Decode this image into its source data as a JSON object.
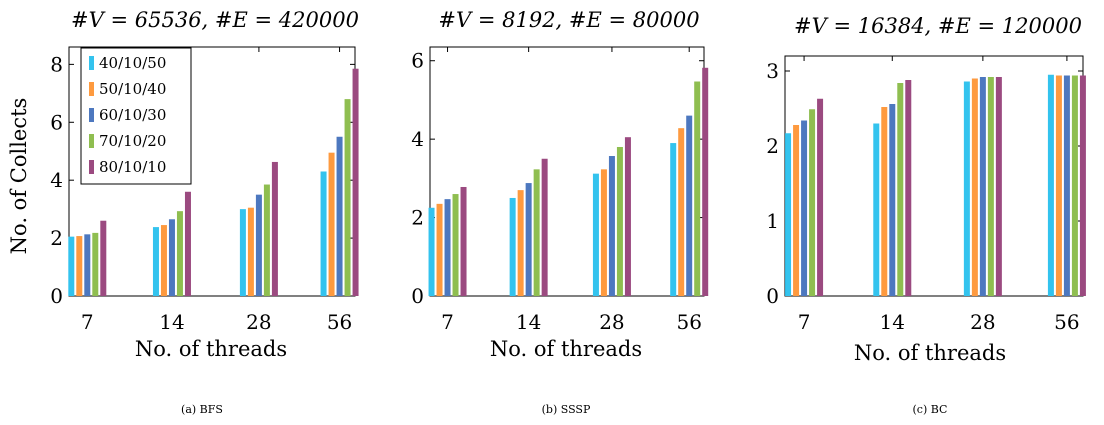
{
  "chart_data": [
    {
      "type": "bar",
      "title": "#V = 65536, #E = 420000",
      "caption": "(a) BFS",
      "xlabel": "No. of threads",
      "ylabel": "No. of Collects",
      "categories": [
        "7",
        "14",
        "28",
        "56"
      ],
      "ylim": [
        0,
        8.6
      ],
      "yticks": [
        0,
        2,
        4,
        6,
        8
      ],
      "legend": "top-left",
      "series": [
        {
          "name": "40/10/50",
          "values": [
            2.05,
            2.38,
            3.0,
            4.3
          ]
        },
        {
          "name": "50/10/40",
          "values": [
            2.07,
            2.45,
            3.05,
            4.95
          ]
        },
        {
          "name": "60/10/30",
          "values": [
            2.13,
            2.65,
            3.5,
            5.5
          ]
        },
        {
          "name": "70/10/20",
          "values": [
            2.18,
            2.93,
            3.85,
            6.8
          ]
        },
        {
          "name": "80/10/10",
          "values": [
            2.6,
            3.6,
            4.63,
            7.85
          ]
        }
      ]
    },
    {
      "type": "bar",
      "title": "#V = 8192, #E = 80000",
      "caption": "(b) SSSP",
      "xlabel": "No. of threads",
      "ylabel": "",
      "categories": [
        "7",
        "14",
        "28",
        "56"
      ],
      "ylim": [
        0,
        6.35
      ],
      "yticks": [
        0,
        2,
        4,
        6
      ],
      "series": [
        {
          "name": "40/10/50",
          "values": [
            2.25,
            2.5,
            3.12,
            3.9
          ]
        },
        {
          "name": "50/10/40",
          "values": [
            2.35,
            2.7,
            3.23,
            4.28
          ]
        },
        {
          "name": "60/10/30",
          "values": [
            2.47,
            2.88,
            3.57,
            4.6
          ]
        },
        {
          "name": "70/10/20",
          "values": [
            2.6,
            3.23,
            3.8,
            5.47
          ]
        },
        {
          "name": "80/10/10",
          "values": [
            2.78,
            3.5,
            4.05,
            5.82
          ]
        }
      ]
    },
    {
      "type": "bar",
      "title": "#V = 16384, #E = 120000",
      "caption": "(c) BC",
      "xlabel": "No. of threads",
      "ylabel": "",
      "categories": [
        "7",
        "14",
        "28",
        "56"
      ],
      "ylim": [
        0,
        3.2
      ],
      "yticks": [
        0,
        1,
        2,
        3
      ],
      "series": [
        {
          "name": "40/10/50",
          "values": [
            2.17,
            2.3,
            2.86,
            2.95
          ]
        },
        {
          "name": "50/10/40",
          "values": [
            2.28,
            2.52,
            2.9,
            2.94
          ]
        },
        {
          "name": "60/10/30",
          "values": [
            2.34,
            2.56,
            2.92,
            2.94
          ]
        },
        {
          "name": "70/10/20",
          "values": [
            2.49,
            2.84,
            2.92,
            2.94
          ]
        },
        {
          "name": "80/10/10",
          "values": [
            2.63,
            2.88,
            2.92,
            2.94
          ]
        }
      ]
    }
  ],
  "colors": [
    "#33c3ee",
    "#fe9a3f",
    "#4d78bf",
    "#8fbe50",
    "#9b4a80"
  ]
}
